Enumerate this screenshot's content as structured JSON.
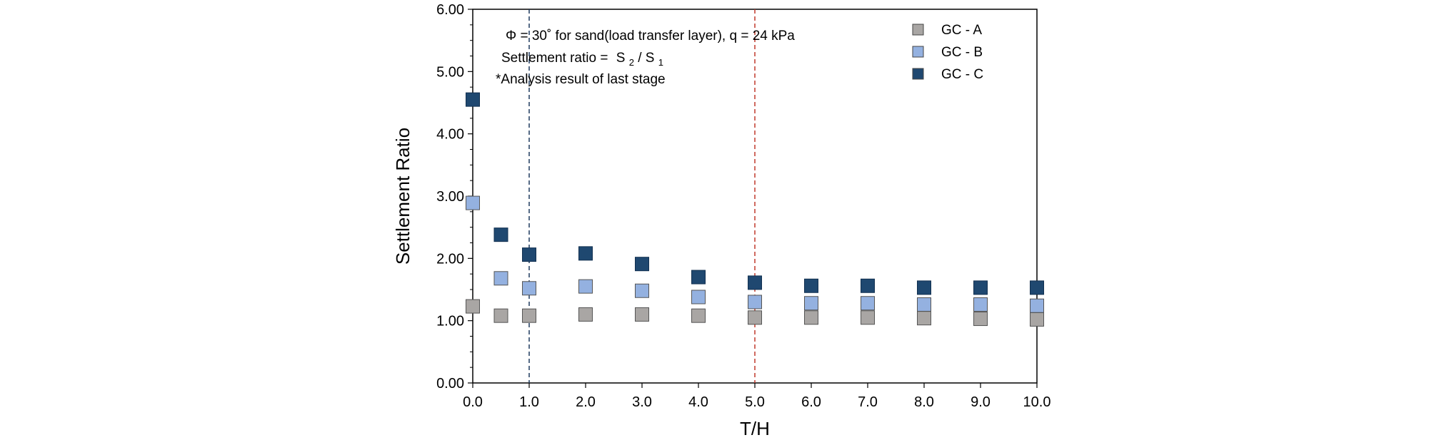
{
  "chart_data": {
    "type": "scatter",
    "xlabel": "T/H",
    "ylabel": "Settlement  Ratio",
    "xlim": [
      0,
      10
    ],
    "ylim": [
      0,
      6
    ],
    "x_tick_labels": [
      "0.0",
      "1.0",
      "2.0",
      "3.0",
      "4.0",
      "5.0",
      "6.0",
      "7.0",
      "8.0",
      "9.0",
      "10.0"
    ],
    "y_tick_labels": [
      "0.00",
      "1.00",
      "2.00",
      "3.00",
      "4.00",
      "5.00",
      "6.00"
    ],
    "grid": false,
    "legend_position": "top-right",
    "annotations": {
      "line1": "Φ = 30˚ for sand(load transfer layer),   q = 24 kPa",
      "line2_prefix": "Settlement ratio = ",
      "s2": "S",
      "s2_sub": "2",
      "slash": " / ",
      "s1": "S",
      "s1_sub": "1",
      "line3": "*Analysis result of  last stage"
    },
    "reference_lines": [
      {
        "x": 1.0,
        "color": "#1f3a5f"
      },
      {
        "x": 5.0,
        "color": "#c0392b"
      }
    ],
    "series": [
      {
        "name": "GC - A",
        "color": "#a9a6a4",
        "x": [
          0.0,
          0.5,
          1.0,
          2.0,
          3.0,
          4.0,
          5.0,
          6.0,
          7.0,
          8.0,
          9.0,
          10.0
        ],
        "y": [
          1.23,
          1.08,
          1.08,
          1.1,
          1.1,
          1.08,
          1.05,
          1.05,
          1.05,
          1.04,
          1.03,
          1.02
        ]
      },
      {
        "name": "GC - B",
        "color": "#94b1e0",
        "x": [
          0.0,
          0.5,
          1.0,
          2.0,
          3.0,
          4.0,
          5.0,
          6.0,
          7.0,
          8.0,
          9.0,
          10.0
        ],
        "y": [
          2.89,
          1.68,
          1.52,
          1.55,
          1.48,
          1.38,
          1.3,
          1.28,
          1.28,
          1.26,
          1.26,
          1.24
        ]
      },
      {
        "name": "GC - C",
        "color": "#1f4870",
        "x": [
          0.0,
          0.5,
          1.0,
          2.0,
          3.0,
          4.0,
          5.0,
          6.0,
          7.0,
          8.0,
          9.0,
          10.0
        ],
        "y": [
          4.55,
          2.38,
          2.06,
          2.08,
          1.91,
          1.7,
          1.61,
          1.56,
          1.56,
          1.53,
          1.53,
          1.53
        ]
      }
    ]
  }
}
